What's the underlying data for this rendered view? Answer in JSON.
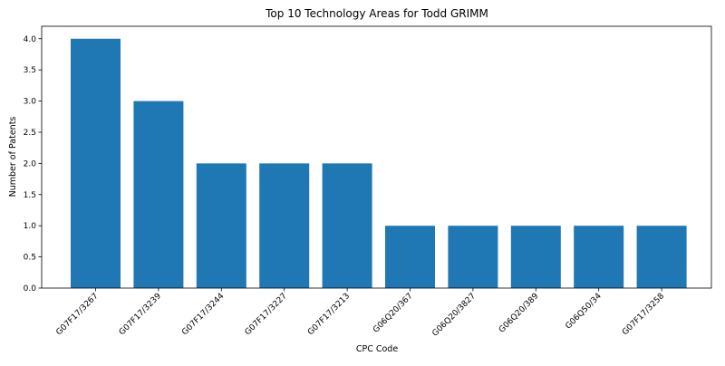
{
  "chart_data": {
    "type": "bar",
    "title": "Top 10 Technology Areas for Todd GRIMM",
    "xlabel": "CPC Code",
    "ylabel": "Number of Patents",
    "categories": [
      "G07F17/3267",
      "G07F17/3239",
      "G07F17/3244",
      "G07F17/3227",
      "G07F17/3213",
      "G06Q20/367",
      "G06Q20/3827",
      "G06Q20/389",
      "G06Q50/34",
      "G07F17/3258"
    ],
    "values": [
      4,
      3,
      2,
      2,
      2,
      1,
      1,
      1,
      1,
      1
    ],
    "ylim": [
      0,
      4.2
    ],
    "yticks": [
      "0.0",
      "0.5",
      "1.0",
      "1.5",
      "2.0",
      "2.5",
      "3.0",
      "3.5",
      "4.0"
    ],
    "grid": false,
    "legend": "none",
    "bar_color": "#1f77b4"
  }
}
